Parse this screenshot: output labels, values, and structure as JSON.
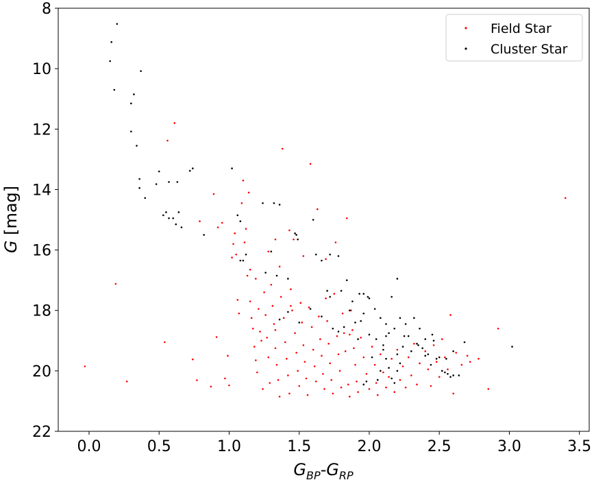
{
  "chart_data": {
    "type": "scatter",
    "title": "",
    "xlabel": {
      "base": "G",
      "sub1": "BP",
      "mid": "-G",
      "sub2": "RP"
    },
    "ylabel": {
      "italic": "G",
      "rest": " [mag]"
    },
    "xlim": [
      -0.22,
      3.57
    ],
    "ylim": [
      22,
      8
    ],
    "y_inverted": true,
    "grid": false,
    "legend_position": "upper-right",
    "x_ticks": [
      0.0,
      0.5,
      1.0,
      1.5,
      2.0,
      2.5,
      3.0,
      3.5
    ],
    "x_tick_labels": [
      "0.0",
      "0.5",
      "1.0",
      "1.5",
      "2.0",
      "2.5",
      "3.0",
      "3.5"
    ],
    "y_ticks": [
      8,
      10,
      12,
      14,
      16,
      18,
      20,
      22
    ],
    "y_tick_labels": [
      "8",
      "10",
      "12",
      "14",
      "16",
      "18",
      "20",
      "22"
    ],
    "series": [
      {
        "name": "Field Star",
        "color": "#ff0000",
        "points": [
          [
            -0.03,
            19.85
          ],
          [
            0.19,
            17.12
          ],
          [
            0.27,
            20.35
          ],
          [
            0.54,
            19.05
          ],
          [
            0.56,
            12.38
          ],
          [
            0.61,
            11.8
          ],
          [
            0.74,
            19.62
          ],
          [
            0.77,
            20.31
          ],
          [
            0.79,
            15.05
          ],
          [
            0.87,
            20.52
          ],
          [
            0.89,
            14.15
          ],
          [
            0.91,
            18.88
          ],
          [
            0.92,
            15.25
          ],
          [
            0.95,
            15.1
          ],
          [
            0.97,
            20.25
          ],
          [
            0.99,
            19.5
          ],
          [
            1.0,
            20.48
          ],
          [
            1.02,
            16.25
          ],
          [
            1.03,
            15.8
          ],
          [
            1.04,
            15.45
          ],
          [
            1.05,
            16.15
          ],
          [
            1.06,
            17.65
          ],
          [
            1.07,
            18.1
          ],
          [
            1.09,
            14.45
          ],
          [
            1.1,
            13.7
          ],
          [
            1.12,
            15.3
          ],
          [
            1.13,
            16.85
          ],
          [
            1.14,
            14.1
          ],
          [
            1.15,
            17.7
          ],
          [
            1.16,
            18.25
          ],
          [
            1.17,
            18.6
          ],
          [
            1.18,
            19.2
          ],
          [
            1.19,
            19.65
          ],
          [
            1.2,
            20.05
          ],
          [
            1.21,
            17.95
          ],
          [
            1.22,
            18.7
          ],
          [
            1.23,
            19.0
          ],
          [
            1.24,
            20.6
          ],
          [
            1.25,
            17.4
          ],
          [
            1.26,
            18.15
          ],
          [
            1.27,
            18.9
          ],
          [
            1.28,
            19.55
          ],
          [
            1.29,
            20.4
          ],
          [
            1.3,
            17.15
          ],
          [
            1.31,
            17.85
          ],
          [
            1.32,
            18.45
          ],
          [
            1.33,
            19.25
          ],
          [
            1.34,
            19.8
          ],
          [
            1.35,
            20.3
          ],
          [
            1.36,
            20.85
          ],
          [
            1.37,
            17.55
          ],
          [
            1.38,
            12.65
          ],
          [
            1.39,
            18.25
          ],
          [
            1.4,
            19.05
          ],
          [
            1.41,
            19.6
          ],
          [
            1.42,
            20.15
          ],
          [
            1.43,
            20.75
          ],
          [
            1.44,
            17.3
          ],
          [
            1.45,
            18.0
          ],
          [
            1.46,
            15.65
          ],
          [
            1.47,
            18.75
          ],
          [
            1.48,
            19.4
          ],
          [
            1.49,
            20.0
          ],
          [
            1.5,
            20.5
          ],
          [
            1.51,
            17.75
          ],
          [
            1.52,
            18.4
          ],
          [
            1.53,
            19.15
          ],
          [
            1.54,
            19.7
          ],
          [
            1.55,
            20.25
          ],
          [
            1.56,
            20.8
          ],
          [
            1.57,
            17.9
          ],
          [
            1.58,
            13.15
          ],
          [
            1.59,
            18.55
          ],
          [
            1.6,
            19.3
          ],
          [
            1.61,
            19.85
          ],
          [
            1.62,
            20.35
          ],
          [
            1.63,
            14.65
          ],
          [
            1.64,
            18.2
          ],
          [
            1.65,
            18.95
          ],
          [
            1.66,
            19.5
          ],
          [
            1.67,
            20.1
          ],
          [
            1.68,
            20.6
          ],
          [
            1.69,
            17.6
          ],
          [
            1.7,
            18.35
          ],
          [
            1.71,
            19.1
          ],
          [
            1.72,
            19.75
          ],
          [
            1.73,
            20.3
          ],
          [
            1.74,
            20.75
          ],
          [
            1.75,
            17.45
          ],
          [
            1.76,
            15.75
          ],
          [
            1.77,
            18.85
          ],
          [
            1.78,
            19.45
          ],
          [
            1.79,
            20.0
          ],
          [
            1.8,
            20.55
          ],
          [
            1.81,
            18.1
          ],
          [
            1.82,
            18.75
          ],
          [
            1.83,
            19.35
          ],
          [
            1.84,
            14.95
          ],
          [
            1.85,
            20.45
          ],
          [
            1.86,
            20.85
          ],
          [
            1.87,
            18.0
          ],
          [
            1.88,
            18.65
          ],
          [
            1.89,
            19.25
          ],
          [
            1.9,
            19.8
          ],
          [
            1.91,
            20.35
          ],
          [
            1.92,
            20.7
          ],
          [
            1.94,
            18.9
          ],
          [
            1.96,
            19.55
          ],
          [
            1.98,
            20.1
          ],
          [
            2.0,
            20.6
          ],
          [
            2.02,
            19.2
          ],
          [
            2.04,
            19.8
          ],
          [
            2.05,
            20.4
          ],
          [
            2.06,
            20.8
          ],
          [
            2.08,
            19.45
          ],
          [
            2.1,
            20.05
          ],
          [
            2.12,
            20.55
          ],
          [
            2.14,
            20.2
          ],
          [
            2.16,
            19.6
          ],
          [
            2.18,
            20.7
          ],
          [
            2.2,
            19.3
          ],
          [
            2.22,
            20.3
          ],
          [
            2.24,
            19.85
          ],
          [
            2.26,
            20.55
          ],
          [
            2.28,
            19.55
          ],
          [
            2.3,
            20.15
          ],
          [
            2.32,
            19.1
          ],
          [
            2.34,
            20.45
          ],
          [
            2.36,
            19.75
          ],
          [
            2.4,
            19.35
          ],
          [
            2.42,
            19.95
          ],
          [
            2.44,
            20.5
          ],
          [
            2.46,
            19.15
          ],
          [
            2.48,
            19.7
          ],
          [
            2.5,
            20.2
          ],
          [
            2.52,
            18.95
          ],
          [
            2.54,
            19.55
          ],
          [
            2.56,
            19.95
          ],
          [
            2.58,
            18.15
          ],
          [
            2.6,
            20.75
          ],
          [
            2.62,
            19.4
          ],
          [
            2.66,
            19.8
          ],
          [
            2.7,
            19.5
          ],
          [
            2.72,
            19.7
          ],
          [
            2.78,
            19.6
          ],
          [
            2.85,
            20.6
          ],
          [
            2.92,
            18.6
          ],
          [
            3.4,
            14.28
          ],
          [
            1.43,
            15.35
          ],
          [
            1.11,
            15.75
          ],
          [
            1.15,
            16.65
          ],
          [
            1.19,
            16.95
          ],
          [
            1.28,
            16.05
          ],
          [
            1.33,
            15.65
          ],
          [
            1.36,
            16.55
          ],
          [
            1.53,
            16.2
          ],
          [
            1.69,
            16.3
          ],
          [
            1.86,
            18.8
          ],
          [
            1.44,
            17.85
          ],
          [
            1.33,
            18.65
          ]
        ]
      },
      {
        "name": "Cluster Star",
        "color": "#000000",
        "points": [
          [
            0.2,
            8.52
          ],
          [
            0.16,
            9.12
          ],
          [
            0.15,
            9.75
          ],
          [
            0.18,
            10.7
          ],
          [
            0.32,
            10.85
          ],
          [
            0.3,
            11.15
          ],
          [
            0.37,
            10.08
          ],
          [
            0.3,
            12.08
          ],
          [
            0.34,
            12.55
          ],
          [
            0.36,
            13.65
          ],
          [
            0.36,
            13.95
          ],
          [
            0.4,
            14.28
          ],
          [
            0.5,
            13.4
          ],
          [
            0.48,
            13.82
          ],
          [
            0.57,
            13.75
          ],
          [
            0.63,
            13.75
          ],
          [
            0.72,
            13.38
          ],
          [
            0.74,
            13.3
          ],
          [
            1.02,
            13.3
          ],
          [
            0.53,
            14.85
          ],
          [
            0.55,
            14.75
          ],
          [
            0.57,
            14.95
          ],
          [
            0.6,
            14.95
          ],
          [
            0.62,
            15.15
          ],
          [
            0.64,
            14.75
          ],
          [
            0.66,
            15.25
          ],
          [
            0.82,
            15.5
          ],
          [
            1.06,
            14.85
          ],
          [
            1.08,
            15.05
          ],
          [
            1.24,
            14.45
          ],
          [
            1.32,
            14.45
          ],
          [
            1.36,
            14.5
          ],
          [
            1.6,
            15.0
          ],
          [
            1.47,
            15.45
          ],
          [
            1.49,
            15.65
          ],
          [
            1.48,
            15.5
          ],
          [
            1.62,
            16.15
          ],
          [
            1.66,
            16.35
          ],
          [
            1.72,
            16.15
          ],
          [
            1.78,
            16.2
          ],
          [
            1.08,
            16.35
          ],
          [
            1.1,
            16.35
          ],
          [
            1.12,
            16.15
          ],
          [
            1.26,
            16.75
          ],
          [
            1.3,
            16.05
          ],
          [
            1.34,
            16.85
          ],
          [
            1.42,
            16.95
          ],
          [
            1.7,
            17.35
          ],
          [
            1.72,
            17.55
          ],
          [
            1.8,
            17.35
          ],
          [
            1.84,
            17.0
          ],
          [
            1.88,
            17.7
          ],
          [
            1.93,
            17.45
          ],
          [
            1.96,
            18.1
          ],
          [
            1.99,
            17.55
          ],
          [
            2.04,
            17.95
          ],
          [
            2.08,
            18.25
          ],
          [
            2.12,
            18.45
          ],
          [
            2.16,
            17.55
          ],
          [
            2.18,
            18.6
          ],
          [
            2.2,
            16.95
          ],
          [
            2.22,
            18.25
          ],
          [
            2.26,
            18.45
          ],
          [
            2.28,
            18.85
          ],
          [
            2.32,
            18.25
          ],
          [
            2.34,
            19.1
          ],
          [
            2.36,
            18.6
          ],
          [
            2.38,
            19.25
          ],
          [
            2.4,
            18.95
          ],
          [
            2.42,
            19.45
          ],
          [
            2.44,
            19.8
          ],
          [
            2.46,
            19.0
          ],
          [
            2.48,
            19.6
          ],
          [
            2.5,
            19.55
          ],
          [
            2.52,
            20.0
          ],
          [
            2.54,
            20.05
          ],
          [
            2.56,
            20.1
          ],
          [
            2.58,
            20.2
          ],
          [
            2.6,
            20.15
          ],
          [
            2.64,
            20.15
          ],
          [
            2.68,
            19.05
          ],
          [
            2.6,
            19.35
          ],
          [
            2.55,
            19.6
          ],
          [
            2.1,
            19.3
          ],
          [
            2.12,
            19.6
          ],
          [
            2.14,
            19.9
          ],
          [
            2.16,
            20.25
          ],
          [
            2.18,
            20.4
          ],
          [
            2.2,
            20.0
          ],
          [
            2.22,
            19.75
          ],
          [
            2.24,
            19.2
          ],
          [
            2.06,
            20.3
          ],
          [
            2.08,
            20.0
          ],
          [
            2.1,
            19.15
          ],
          [
            2.02,
            19.55
          ],
          [
            1.98,
            20.35
          ],
          [
            1.96,
            20.45
          ],
          [
            1.9,
            18.4
          ],
          [
            1.92,
            18.95
          ],
          [
            1.82,
            18.55
          ],
          [
            1.74,
            18.6
          ],
          [
            1.78,
            18.7
          ],
          [
            1.86,
            18.0
          ],
          [
            1.94,
            18.35
          ],
          [
            2.0,
            18.8
          ],
          [
            2.05,
            18.95
          ],
          [
            2.12,
            18.85
          ],
          [
            2.14,
            18.75
          ],
          [
            2.2,
            19.45
          ],
          [
            2.25,
            18.85
          ],
          [
            2.3,
            19.35
          ],
          [
            2.35,
            19.15
          ],
          [
            2.4,
            19.5
          ],
          [
            2.45,
            18.8
          ],
          [
            3.02,
            19.2
          ],
          [
            2.0,
            17.6
          ],
          [
            1.96,
            17.45
          ],
          [
            1.66,
            18.2
          ],
          [
            1.58,
            17.95
          ],
          [
            1.42,
            18.05
          ],
          [
            1.5,
            18.4
          ],
          [
            1.36,
            18.3
          ]
        ]
      }
    ]
  }
}
